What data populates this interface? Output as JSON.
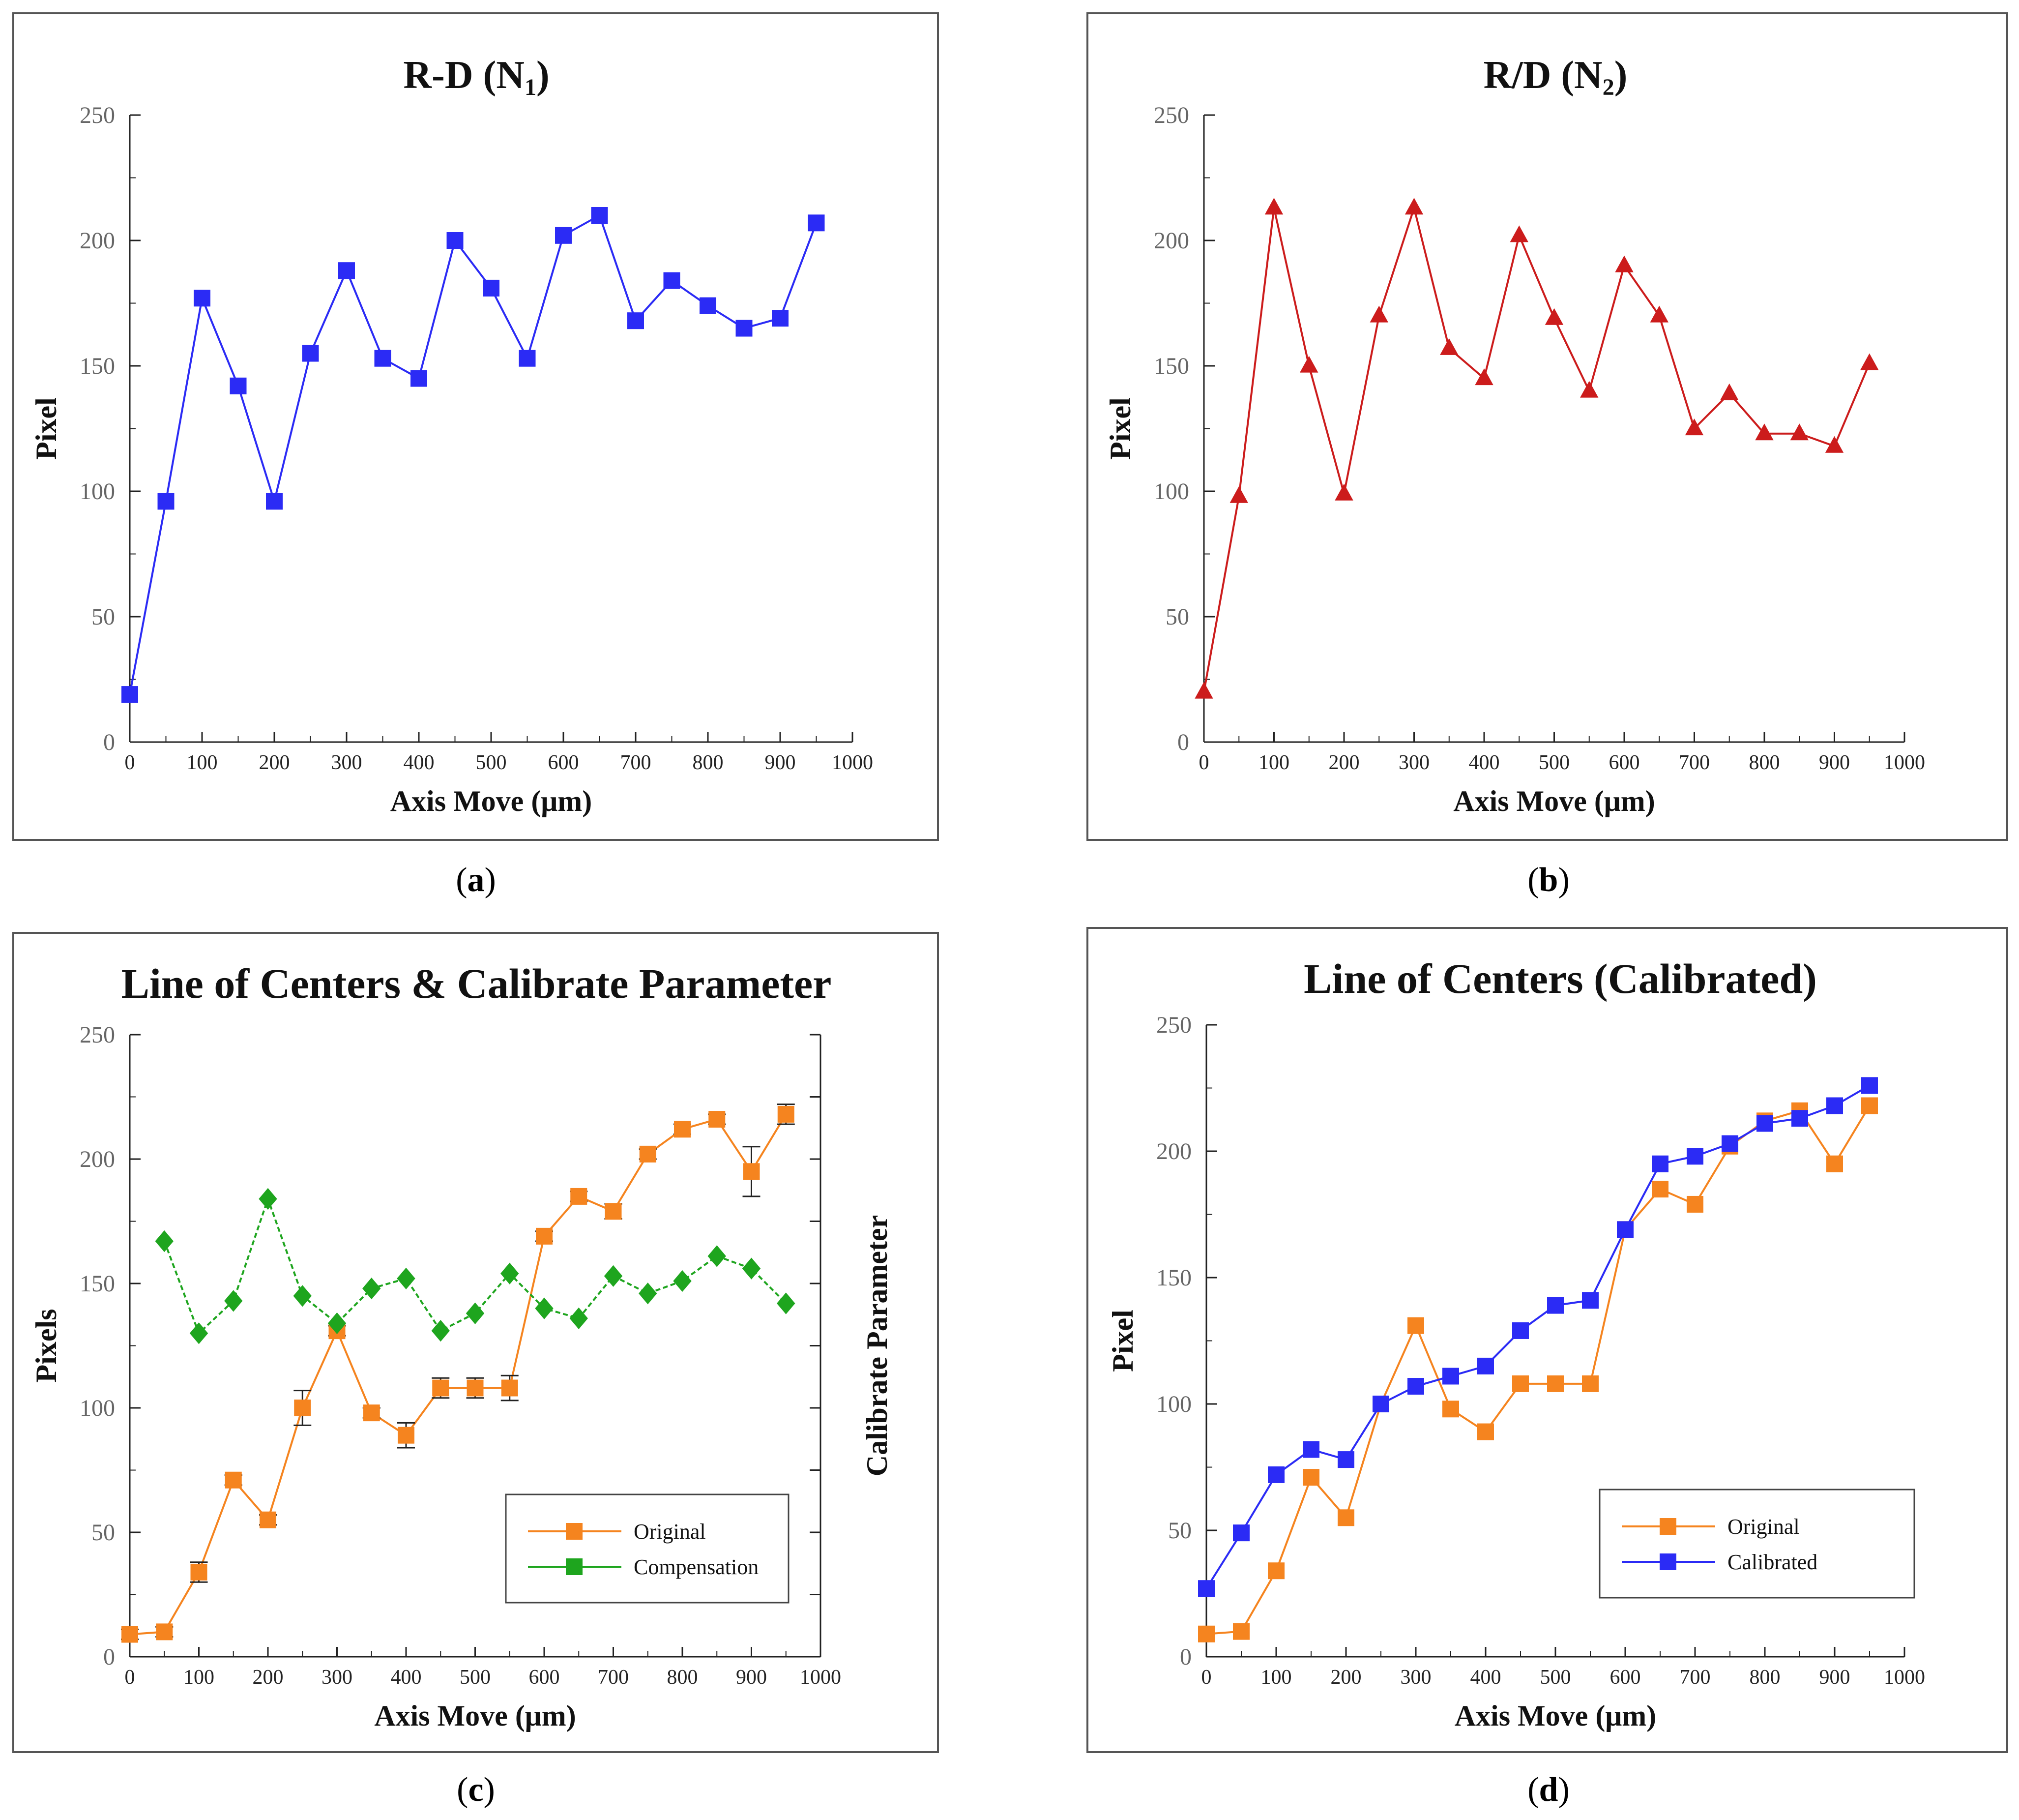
{
  "chart_data": [
    {
      "id": "a",
      "type": "line",
      "title": "R-D (N",
      "title_sub": "1",
      "title_end": ")",
      "xlabel": "Axis Move (μm)",
      "ylabel": "Pixel",
      "xlim": [
        0,
        1000
      ],
      "ylim": [
        0,
        250
      ],
      "xticks": [
        0,
        100,
        200,
        300,
        400,
        500,
        600,
        700,
        800,
        900,
        1000
      ],
      "yticks": [
        0,
        50,
        100,
        150,
        200,
        250
      ],
      "series": [
        {
          "color": "#2b2bf5",
          "marker": "square",
          "x": [
            0,
            50,
            100,
            150,
            200,
            250,
            300,
            350,
            400,
            450,
            500,
            550,
            600,
            650,
            700,
            750,
            800,
            850,
            900,
            950
          ],
          "y": [
            19,
            96,
            177,
            142,
            96,
            155,
            188,
            153,
            145,
            200,
            181,
            153,
            202,
            210,
            168,
            184,
            174,
            165,
            169,
            207
          ]
        }
      ],
      "caption": "a"
    },
    {
      "id": "b",
      "type": "line",
      "title": "R/D (N",
      "title_sub": "2",
      "title_end": ")",
      "xlabel": "Axis Move (μm)",
      "ylabel": "Pixel",
      "xlim": [
        0,
        1000
      ],
      "ylim": [
        0,
        250
      ],
      "xticks": [
        0,
        100,
        200,
        300,
        400,
        500,
        600,
        700,
        800,
        900,
        1000
      ],
      "yticks": [
        0,
        50,
        100,
        150,
        200,
        250
      ],
      "series": [
        {
          "color": "#cc1c1c",
          "marker": "triangle",
          "x": [
            0,
            50,
            100,
            150,
            200,
            250,
            300,
            350,
            400,
            450,
            500,
            550,
            600,
            650,
            700,
            750,
            800,
            850,
            900,
            950
          ],
          "y": [
            20,
            98,
            213,
            150,
            99,
            170,
            213,
            157,
            145,
            202,
            169,
            140,
            190,
            170,
            125,
            139,
            123,
            123,
            118,
            151
          ]
        }
      ],
      "caption": "b"
    },
    {
      "id": "c",
      "type": "line",
      "title": "Line of Centers & Calibrate Parameter",
      "xlabel": "Axis Move (μm)",
      "ylabel": "Pixels",
      "ylabel_right": "Calibrate Parameter",
      "xlim": [
        0,
        1000
      ],
      "ylim": [
        0,
        250
      ],
      "xticks": [
        0,
        100,
        200,
        300,
        400,
        500,
        600,
        700,
        800,
        900,
        1000
      ],
      "yticks": [
        0,
        50,
        100,
        150,
        200,
        250
      ],
      "legend_position": "bottom-right",
      "series": [
        {
          "name": "Original",
          "color": "#f5841f",
          "marker": "square",
          "x": [
            0,
            50,
            100,
            150,
            200,
            250,
            300,
            350,
            400,
            450,
            500,
            550,
            600,
            650,
            700,
            750,
            800,
            850,
            900,
            950
          ],
          "y": [
            9,
            10,
            34,
            71,
            55,
            100,
            131,
            98,
            89,
            108,
            108,
            108,
            169,
            185,
            179,
            202,
            212,
            216,
            195,
            218
          ],
          "err": [
            2,
            2,
            4,
            2,
            2,
            7,
            2,
            2,
            5,
            4,
            4,
            5,
            2,
            2,
            3,
            2,
            2,
            2,
            10,
            4
          ]
        },
        {
          "name": "Compensation",
          "color": "#1ea51e",
          "marker": "diamond",
          "x": [
            50,
            100,
            150,
            200,
            250,
            300,
            350,
            400,
            450,
            500,
            550,
            600,
            650,
            700,
            750,
            800,
            850,
            900,
            950
          ],
          "y": [
            167,
            130,
            143,
            184,
            145,
            134,
            148,
            152,
            131,
            138,
            154,
            140,
            136,
            153,
            146,
            151,
            161,
            156,
            142
          ]
        }
      ],
      "caption": "c"
    },
    {
      "id": "d",
      "type": "line",
      "title": "Line of Centers (Calibrated)",
      "xlabel": "Axis Move (μm)",
      "ylabel": "Pixel",
      "xlim": [
        0,
        1000
      ],
      "ylim": [
        0,
        250
      ],
      "xticks": [
        0,
        100,
        200,
        300,
        400,
        500,
        600,
        700,
        800,
        900,
        1000
      ],
      "yticks": [
        0,
        50,
        100,
        150,
        200,
        250
      ],
      "legend_position": "bottom-right",
      "series": [
        {
          "name": "Original",
          "color": "#f5841f",
          "marker": "square",
          "x": [
            0,
            50,
            100,
            150,
            200,
            250,
            300,
            350,
            400,
            450,
            500,
            550,
            600,
            650,
            700,
            750,
            800,
            850,
            900,
            950
          ],
          "y": [
            9,
            10,
            34,
            71,
            55,
            100,
            131,
            98,
            89,
            108,
            108,
            108,
            169,
            185,
            179,
            202,
            212,
            216,
            195,
            218
          ]
        },
        {
          "name": "Calibrated",
          "color": "#2b2bf5",
          "marker": "square",
          "x": [
            0,
            50,
            100,
            150,
            200,
            250,
            300,
            350,
            400,
            450,
            500,
            550,
            600,
            650,
            700,
            750,
            800,
            850,
            900,
            950
          ],
          "y": [
            27,
            49,
            72,
            82,
            78,
            100,
            107,
            111,
            115,
            129,
            139,
            141,
            169,
            195,
            198,
            203,
            211,
            213,
            218,
            226
          ]
        }
      ],
      "caption": "d"
    }
  ]
}
